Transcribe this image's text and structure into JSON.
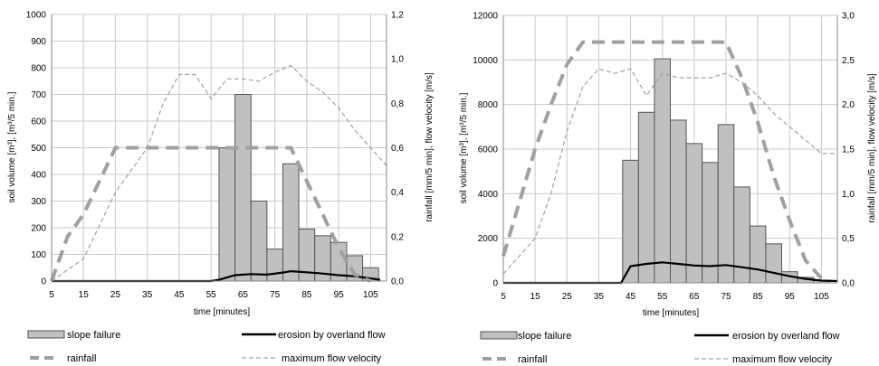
{
  "chart_data": [
    {
      "type": "bar",
      "x_axis": {
        "label": "time [minutes]",
        "range": [
          5,
          110
        ],
        "ticks": [
          "5",
          "15",
          "25",
          "35",
          "45",
          "55",
          "65",
          "75",
          "85",
          "95",
          "105"
        ]
      },
      "y_left": {
        "label": "soil volume [m³], [m³/5 min.]",
        "range": [
          0,
          1000
        ],
        "ticks": [
          "0",
          "100",
          "200",
          "300",
          "400",
          "500",
          "600",
          "700",
          "800",
          "900",
          "1000"
        ]
      },
      "y_right": {
        "label": "rainfall [mm/5 min], flow velocity [m/s]",
        "range": [
          0,
          1.2
        ],
        "ticks": [
          "0,0",
          "0,2",
          "0,4",
          "0,6",
          "0,8",
          "1,0",
          "1,2"
        ]
      },
      "grid": true,
      "bar_width_minutes": 5,
      "bars": {
        "name": "slope failure",
        "color": "#c0c0c0",
        "x": [
          60,
          65,
          70,
          75,
          80,
          85,
          90,
          95,
          100,
          105
        ],
        "values": [
          500,
          700,
          300,
          120,
          440,
          195,
          170,
          145,
          95,
          50
        ]
      },
      "lines": [
        {
          "name": "erosion by overland flow",
          "axis": "left",
          "style": "solid-black",
          "x": [
            5,
            55,
            57.5,
            62.5,
            67.5,
            72.5,
            77.5,
            80,
            85,
            90,
            95,
            100,
            105,
            108
          ],
          "values": [
            0,
            0,
            5,
            22,
            26,
            24,
            32,
            37,
            33,
            28,
            22,
            18,
            10,
            5
          ]
        },
        {
          "name": "rainfall",
          "axis": "right",
          "style": "dashed-thick-grey",
          "x": [
            5,
            10,
            15,
            20,
            25,
            30,
            75,
            80,
            85,
            90,
            95,
            100,
            105
          ],
          "values": [
            0,
            0.2,
            0.3,
            0.45,
            0.6,
            0.6,
            0.6,
            0.6,
            0.45,
            0.3,
            0.15,
            0.03,
            0
          ]
        },
        {
          "name": "maximum flow velocity",
          "axis": "right",
          "style": "dashed-thin-grey",
          "x": [
            5,
            10,
            15,
            20,
            25,
            30,
            35,
            40,
            45,
            50,
            55,
            60,
            65,
            70,
            75,
            80,
            85,
            90,
            95,
            100,
            105,
            110
          ],
          "values": [
            0,
            0.05,
            0.1,
            0.25,
            0.4,
            0.5,
            0.6,
            0.8,
            0.93,
            0.93,
            0.82,
            0.91,
            0.91,
            0.9,
            0.94,
            0.97,
            0.9,
            0.85,
            0.78,
            0.68,
            0.6,
            0.52
          ]
        }
      ]
    },
    {
      "type": "bar",
      "x_axis": {
        "label": "time [minutes]",
        "range": [
          5,
          110
        ],
        "ticks": [
          "5",
          "15",
          "25",
          "35",
          "45",
          "55",
          "65",
          "75",
          "85",
          "95",
          "105"
        ]
      },
      "y_left": {
        "label": "soil volume [m³], [m³/5 min.]",
        "range": [
          0,
          12000
        ],
        "ticks": [
          "0",
          "2000",
          "4000",
          "6000",
          "8000",
          "10000",
          "12000"
        ]
      },
      "y_right": {
        "label": "rainfall [mm/5 min], flow velocity [m/s]",
        "range": [
          0,
          3.0
        ],
        "ticks": [
          "0,0",
          "0,5",
          "1,0",
          "1,5",
          "2,0",
          "2,5",
          "3,0"
        ]
      },
      "grid": true,
      "bar_width_minutes": 5,
      "bars": {
        "name": "slope failure",
        "color": "#c0c0c0",
        "x": [
          45,
          50,
          55,
          60,
          65,
          70,
          75,
          80,
          85,
          90,
          95,
          100,
          105
        ],
        "values": [
          5500,
          7650,
          10050,
          7300,
          6250,
          5400,
          7100,
          4300,
          2550,
          1750,
          500,
          250,
          100
        ]
      },
      "lines": [
        {
          "name": "erosion by overland flow",
          "axis": "left",
          "style": "solid-black",
          "x": [
            5,
            42,
            45,
            50,
            55,
            60,
            65,
            70,
            75,
            80,
            85,
            90,
            95,
            100,
            105,
            110
          ],
          "values": [
            0,
            0,
            750,
            850,
            920,
            850,
            780,
            750,
            800,
            700,
            600,
            450,
            300,
            180,
            100,
            80
          ]
        },
        {
          "name": "rainfall",
          "axis": "right",
          "style": "dashed-thick-grey",
          "x": [
            5,
            10,
            15,
            20,
            25,
            30,
            75,
            80,
            85,
            90,
            95,
            100,
            105
          ],
          "values": [
            0.3,
            0.9,
            1.5,
            2.0,
            2.45,
            2.7,
            2.7,
            2.3,
            1.8,
            1.2,
            0.7,
            0.25,
            0.05
          ]
        },
        {
          "name": "maximum flow velocity",
          "axis": "right",
          "style": "dashed-thin-grey",
          "x": [
            5,
            10,
            15,
            20,
            25,
            30,
            35,
            40,
            45,
            50,
            55,
            60,
            65,
            70,
            75,
            80,
            85,
            90,
            95,
            100,
            105,
            110
          ],
          "values": [
            0.1,
            0.3,
            0.5,
            1.0,
            1.7,
            2.2,
            2.4,
            2.35,
            2.4,
            2.1,
            2.35,
            2.3,
            2.3,
            2.3,
            2.35,
            2.25,
            2.1,
            1.9,
            1.75,
            1.6,
            1.45,
            1.45
          ]
        }
      ]
    }
  ],
  "legend": {
    "slope_failure": "slope failure",
    "erosion": "erosion by overland flow",
    "rainfall": "rainfall",
    "max_flow": "maximum flow velocity"
  },
  "colors": {
    "bar_fill": "#c0c0c0",
    "bar_stroke": "#555555",
    "grid": "#c8c8c8",
    "erosion": "#000000",
    "rainfall": "#a0a0a0",
    "max_flow": "#a0a0a0"
  }
}
